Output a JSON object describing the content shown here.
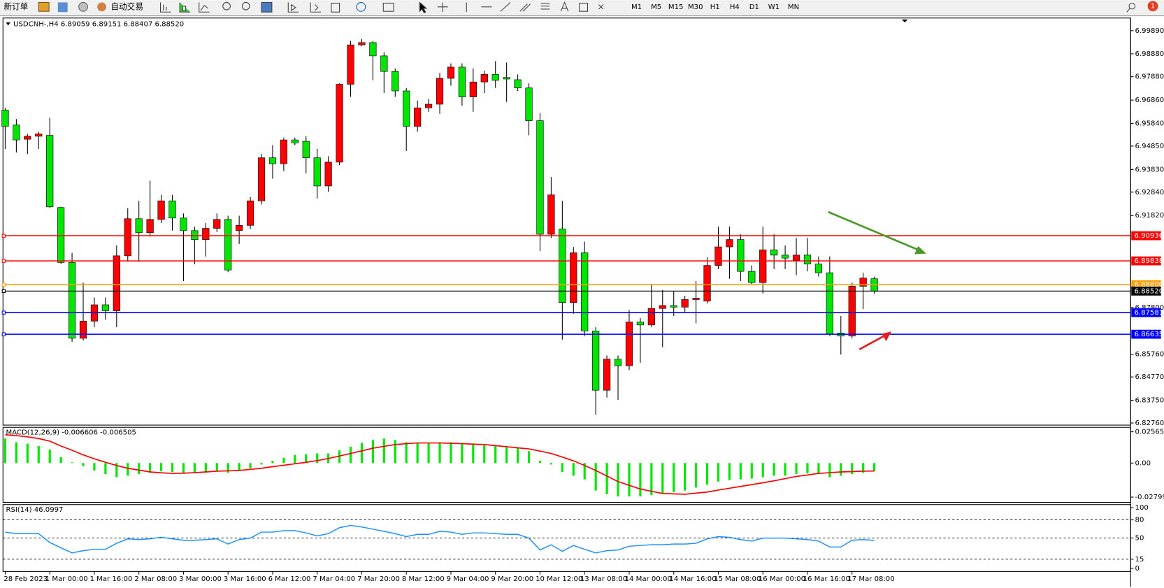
{
  "toolbar": {
    "new_order": "新订单",
    "auto_trading": "自动交易",
    "timeframes": [
      "M1",
      "M5",
      "M15",
      "M30",
      "H1",
      "H4",
      "D1",
      "W1",
      "MN"
    ],
    "notifications": "1"
  },
  "chart_data": [
    {
      "type": "candlestick",
      "title": "USDCNH-,H4  6.89059 6.89151 6.88407 6.88520",
      "categories": [
        "28 Feb 2023",
        null,
        null,
        null,
        "1 Mar 00:00",
        null,
        null,
        null,
        "1 Mar 16:00",
        null,
        null,
        null,
        "2 Mar 08:00",
        null,
        null,
        null,
        "3 Mar 00:00",
        null,
        null,
        null,
        "3 Mar 16:00",
        null,
        null,
        null,
        "6 Mar 12:00",
        null,
        null,
        null,
        "7 Mar 04:00",
        null,
        null,
        null,
        "7 Mar 20:00",
        null,
        null,
        null,
        "8 Mar 12:00",
        null,
        null,
        null,
        "9 Mar 04:00",
        null,
        null,
        null,
        "9 Mar 20:00",
        null,
        null,
        null,
        "10 Mar 12:00",
        null,
        null,
        null,
        "13 Mar 08:00",
        null,
        null,
        null,
        "14 Mar 00:00",
        null,
        null,
        null,
        "14 Mar 16:00",
        null,
        null,
        null,
        "15 Mar 08:00",
        null,
        null,
        null,
        "16 Mar 00:00",
        null,
        null,
        null,
        "16 Mar 16:00",
        null,
        null,
        null,
        "17 Mar 08:00",
        null,
        null
      ],
      "open": [
        6.9642,
        6.9577,
        6.9515,
        6.9528,
        6.9532,
        6.9217,
        6.8977,
        6.8646,
        6.8721,
        6.8792,
        6.8766,
        6.9006,
        6.9168,
        6.9107,
        6.9165,
        6.9246,
        6.9171,
        6.9116,
        6.9077,
        6.9126,
        6.9165,
        6.9116,
        6.9139,
        6.9246,
        6.9434,
        6.9408,
        6.9512,
        6.9506,
        6.9434,
        6.9311,
        6.9415,
        6.9755,
        6.9927,
        6.9937,
        6.9879,
        6.9811,
        6.9726,
        6.9571,
        6.9652,
        6.9668,
        6.9781,
        6.983,
        6.97,
        6.9765,
        6.9798,
        6.9785,
        6.9775,
        6.9739,
        6.9596,
        6.91,
        6.9123,
        6.8802,
        6.9019,
        6.8678,
        6.8419,
        6.8555,
        6.8526,
        6.8717,
        6.8704,
        6.8776,
        6.8789,
        6.8782,
        6.8815,
        6.8808,
        6.8964,
        6.9045,
        6.9077,
        6.8938,
        6.8889,
        6.9032,
        6.9009,
        6.8987,
        6.9009,
        6.897,
        6.8932,
        6.8669,
        6.8656,
        6.8873,
        6.89059
      ],
      "high": [
        6.9652,
        6.9603,
        6.9538,
        6.9548,
        6.9609,
        6.922,
        6.9019,
        6.8889,
        6.8824,
        6.8824,
        6.9051,
        6.9214,
        6.9246,
        6.9334,
        6.9272,
        6.9272,
        6.9191,
        6.9133,
        6.9149,
        6.9191,
        6.9181,
        6.9181,
        6.9262,
        6.9451,
        6.9489,
        6.9522,
        6.9522,
        6.9528,
        6.9473,
        6.9441,
        6.9759,
        6.9944,
        6.9953,
        6.9944,
        6.9895,
        6.9824,
        6.9739,
        6.9684,
        6.9691,
        6.9804,
        6.9846,
        6.9846,
        6.9824,
        6.9814,
        6.9856,
        6.985,
        6.9798,
        6.9759,
        6.9629,
        6.935,
        6.9246,
        6.9045,
        6.9068,
        6.8695,
        6.8571,
        6.8571,
        6.8769,
        6.8734,
        6.8883,
        6.8857,
        6.885,
        6.8831,
        6.8896,
        6.9,
        6.9133,
        6.9133,
        6.91,
        6.8964,
        6.9133,
        6.91,
        6.9051,
        6.9084,
        6.9084,
        6.9003,
        6.9003,
        6.8743,
        6.8889,
        6.8932,
        6.89151
      ],
      "low": [
        6.9473,
        6.9457,
        6.945,
        6.9473,
        6.9214,
        6.897,
        6.863,
        6.8636,
        6.8695,
        6.8727,
        6.8695,
        6.898,
        6.898,
        6.909,
        6.9149,
        6.9116,
        6.8896,
        6.897,
        6.9003,
        6.911,
        6.8935,
        6.9058,
        6.9123,
        6.923,
        6.9343,
        6.9376,
        6.9489,
        6.9366,
        6.9256,
        6.9285,
        6.9402,
        6.97,
        6.9921,
        6.9772,
        6.9717,
        6.97,
        6.9464,
        6.9548,
        6.9635,
        6.9626,
        6.9749,
        6.9661,
        6.9635,
        6.9717,
        6.9739,
        6.9678,
        6.9726,
        6.9532,
        6.9026,
        6.9084,
        6.864,
        6.8753,
        6.8656,
        6.8312,
        6.8387,
        6.8377,
        6.8507,
        6.8539,
        6.8695,
        6.8607,
        6.8743,
        6.876,
        6.8711,
        6.8798,
        6.8948,
        6.8906,
        6.8896,
        6.8883,
        6.8841,
        6.8948,
        6.8948,
        6.8922,
        6.8938,
        6.8915,
        6.8656,
        6.8575,
        6.8646,
        6.8773,
        6.88407
      ],
      "close": [
        6.9571,
        6.9512,
        6.9528,
        6.9538,
        6.922,
        6.8977,
        6.8646,
        6.8721,
        6.8792,
        6.8766,
        6.9006,
        6.9168,
        6.9107,
        6.9165,
        6.9246,
        6.9171,
        6.9116,
        6.9077,
        6.9126,
        6.9165,
        6.8944,
        6.9139,
        6.9246,
        6.9434,
        6.9408,
        6.9512,
        6.9499,
        6.9434,
        6.9311,
        6.9415,
        6.9755,
        6.9927,
        6.9937,
        6.9879,
        6.9811,
        6.9726,
        6.9571,
        6.9652,
        6.9668,
        6.9781,
        6.983,
        6.97,
        6.9765,
        6.9798,
        6.9772,
        6.9778,
        6.9739,
        6.9596,
        6.91,
        6.9272,
        6.8802,
        6.9019,
        6.8678,
        6.8419,
        6.8555,
        6.8526,
        6.8717,
        6.8704,
        6.8776,
        6.8789,
        6.8782,
        6.8815,
        6.8821,
        6.8964,
        6.9045,
        6.9077,
        6.8938,
        6.8889,
        6.9032,
        6.9009,
        6.8996,
        6.9009,
        6.897,
        6.8932,
        6.8665,
        6.8656,
        6.8873,
        6.8909,
        6.8852
      ],
      "up_color": "#ff0000",
      "down_color": "#00e600",
      "ylim": [
        6.827,
        7.0041
      ],
      "yticks": [
        {
          "value": 6.9989,
          "label": "6.99890"
        },
        {
          "value": 6.9888,
          "label": "6.98880"
        },
        {
          "value": 6.9788,
          "label": "6.97880"
        },
        {
          "value": 6.9686,
          "label": "6.96860"
        },
        {
          "value": 6.9584,
          "label": "6.95840"
        },
        {
          "value": 6.9485,
          "label": "6.94850"
        },
        {
          "value": 6.9383,
          "label": "6.93830"
        },
        {
          "value": 6.9284,
          "label": "6.92840"
        },
        {
          "value": 6.9182,
          "label": "6.91820"
        },
        {
          "value": 6.878,
          "label": "6.87800"
        },
        {
          "value": 6.8576,
          "label": "6.85760"
        },
        {
          "value": 6.8477,
          "label": "6.84770"
        },
        {
          "value": 6.8375,
          "label": "6.83750"
        },
        {
          "value": 6.8276,
          "label": "6.82760"
        }
      ],
      "levels": [
        {
          "value": 6.90936,
          "color": "#ff0000"
        },
        {
          "value": 6.89838,
          "color": "#ff0000"
        },
        {
          "value": 6.888,
          "label": "6.88800",
          "color": "#ffa000"
        },
        {
          "value": 6.8852,
          "label": "6.88520",
          "color": "#000000"
        },
        {
          "value": 6.87581,
          "color": "#0000ff"
        },
        {
          "value": 6.86635,
          "color": "#0000ff"
        }
      ]
    },
    {
      "type": "macd",
      "title": "MACD(12,26,9) -0.006606 -0.006505",
      "series": [
        {
          "style": "bar",
          "color": "#00e600",
          "values": [
            0.0201,
            0.0171,
            0.0159,
            0.014,
            0.011,
            0.0049,
            0.0006,
            -0.0024,
            -0.0061,
            -0.0091,
            -0.0116,
            -0.0104,
            -0.0091,
            -0.0079,
            -0.0067,
            -0.0073,
            -0.0079,
            -0.0085,
            -0.0079,
            -0.0067,
            -0.0079,
            -0.0061,
            -0.0043,
            -0.0012,
            0.0018,
            0.0043,
            0.0067,
            0.0073,
            0.0079,
            0.0079,
            0.0104,
            0.0134,
            0.0165,
            0.0189,
            0.0201,
            0.0189,
            0.0171,
            0.0165,
            0.0165,
            0.0171,
            0.0171,
            0.0159,
            0.0152,
            0.0146,
            0.014,
            0.0128,
            0.0122,
            0.0098,
            0.0018,
            -0.0012,
            -0.0073,
            -0.0104,
            -0.0134,
            -0.0226,
            -0.0256,
            -0.0274,
            -0.0274,
            -0.0274,
            -0.0262,
            -0.025,
            -0.0238,
            -0.0226,
            -0.0201,
            -0.0177,
            -0.0152,
            -0.014,
            -0.0134,
            -0.0128,
            -0.0116,
            -0.0104,
            -0.0104,
            -0.0091,
            -0.0085,
            -0.0091,
            -0.0116,
            -0.0104,
            -0.0091,
            -0.0079,
            -0.006606
          ]
        },
        {
          "style": "line",
          "color": "#ff0000",
          "values": [
            0.0232,
            0.0225,
            0.0215,
            0.0201,
            0.018,
            0.014,
            0.0105,
            0.0067,
            0.0035,
            0.0006,
            -0.002,
            -0.0043,
            -0.0058,
            -0.0073,
            -0.008,
            -0.0085,
            -0.0083,
            -0.0079,
            -0.0073,
            -0.0067,
            -0.0064,
            -0.0061,
            -0.0052,
            -0.0043,
            -0.003,
            -0.0018,
            -0.0006,
            0.0006,
            0.002,
            0.0037,
            0.0058,
            0.0079,
            0.01,
            0.0122,
            0.0137,
            0.0152,
            0.0159,
            0.0165,
            0.0165,
            0.0165,
            0.0162,
            0.0159,
            0.0155,
            0.0152,
            0.0143,
            0.0134,
            0.0125,
            0.0116,
            0.0098,
            0.0079,
            0.0049,
            0.0018,
            -0.002,
            -0.0061,
            -0.0107,
            -0.0152,
            -0.0183,
            -0.0213,
            -0.0232,
            -0.025,
            -0.0253,
            -0.0256,
            -0.0247,
            -0.0238,
            -0.0222,
            -0.0207,
            -0.0192,
            -0.0177,
            -0.0162,
            -0.0146,
            -0.0128,
            -0.011,
            -0.0098,
            -0.0085,
            -0.0079,
            -0.0073,
            -0.007,
            -0.0067,
            -0.006505
          ]
        }
      ],
      "ylim": [
        -0.0323,
        0.0287
      ],
      "yticks": [
        0.025655,
        {
          "value": 0,
          "label": "0.00"
        },
        -0.027995
      ]
    },
    {
      "type": "line",
      "title": "RSI(14) 46.0997",
      "color": "#1e90ff",
      "values": [
        59.8,
        57.3,
        57.3,
        57.3,
        42.6,
        34.0,
        25.4,
        29.1,
        31.5,
        31.5,
        41.3,
        48.7,
        47.5,
        48.7,
        51.2,
        48.7,
        46.3,
        46.3,
        47.5,
        48.7,
        40.1,
        47.5,
        49.9,
        59.8,
        59.8,
        62.2,
        62.2,
        58.5,
        53.6,
        57.3,
        67.1,
        70.8,
        68.3,
        64.7,
        61.0,
        57.3,
        52.4,
        56.1,
        56.1,
        61.0,
        59.8,
        56.1,
        58.5,
        58.5,
        57.3,
        56.1,
        56.1,
        49.9,
        30.3,
        38.9,
        28.1,
        37.7,
        31.5,
        25.4,
        29.1,
        30.3,
        36.4,
        37.7,
        38.9,
        38.9,
        40.1,
        40.1,
        41.3,
        48.7,
        52.4,
        51.2,
        47.5,
        45.0,
        49.9,
        49.9,
        49.9,
        48.7,
        47.5,
        45.0,
        35.2,
        35.2,
        46.3,
        47.5,
        46.0997
      ],
      "ylim": [
        -4,
        104
      ],
      "yticks": [
        100,
        80,
        50,
        15,
        0
      ],
      "levels": [
        80,
        50,
        15
      ]
    }
  ]
}
